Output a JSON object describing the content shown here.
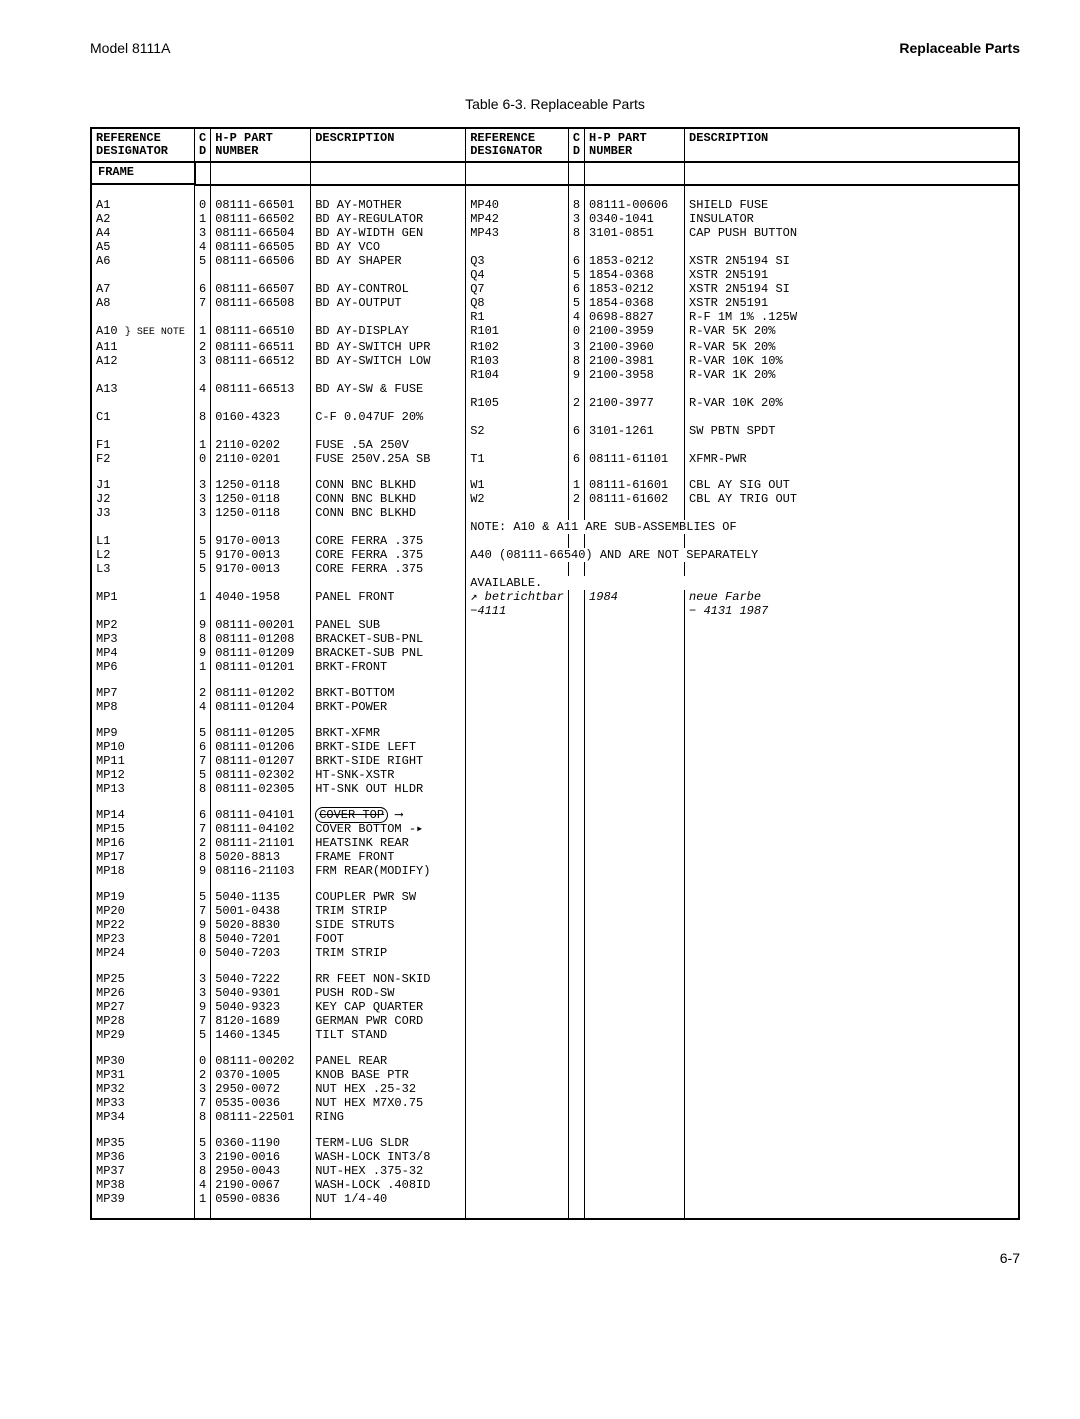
{
  "header": {
    "model": "Model 8111A",
    "section": "Replaceable Parts"
  },
  "table_caption": "Table 6-3. Replaceable Parts",
  "columns_left": {
    "ref": "REFERENCE\nDESIGNATOR",
    "cd": "C\nD",
    "num": "H-P  PART\nNUMBER",
    "desc": "DESCRIPTION"
  },
  "columns_right": {
    "ref": "REFERENCE\nDESIGNATOR",
    "cd": "C\nD",
    "num": "H-P  PART\nNUMBER",
    "desc": "DESCRIPTION"
  },
  "frame_label": "FRAME",
  "page_number": "6-7",
  "left_blocks": [
    [
      [
        "A1",
        "0",
        "08111-66501",
        "BD AY-MOTHER"
      ],
      [
        "A2",
        "1",
        "08111-66502",
        "BD AY-REGULATOR"
      ],
      [
        "A4",
        "3",
        "08111-66504",
        "BD AY-WIDTH GEN"
      ],
      [
        "A5",
        "4",
        "08111-66505",
        "BD AY VCO"
      ],
      [
        "A6",
        "5",
        "08111-66506",
        "BD AY SHAPER"
      ]
    ],
    [
      [
        "A7",
        "6",
        "08111-66507",
        "BD AY-CONTROL"
      ],
      [
        "A8",
        "7",
        "08111-66508",
        "BD AY-OUTPUT"
      ]
    ],
    [
      [
        "A13",
        "4",
        "08111-66513",
        "BD AY-SW & FUSE"
      ]
    ],
    [
      [
        "C1",
        "8",
        "0160-4323",
        "C-F 0.047UF 20%"
      ]
    ],
    [
      [
        "F1",
        "1",
        "2110-0202",
        "FUSE .5A 250V"
      ],
      [
        "F2",
        "0",
        "2110-0201",
        "FUSE 250V.25A SB"
      ]
    ],
    [
      [
        "J1",
        "3",
        "1250-0118",
        "CONN BNC BLKHD"
      ],
      [
        "J2",
        "3",
        "1250-0118",
        "CONN BNC BLKHD"
      ],
      [
        "J3",
        "3",
        "1250-0118",
        "CONN BNC BLKHD"
      ]
    ],
    [
      [
        "L1",
        "5",
        "9170-0013",
        "CORE FERRA .375"
      ],
      [
        "L2",
        "5",
        "9170-0013",
        "CORE FERRA .375"
      ],
      [
        "L3",
        "5",
        "9170-0013",
        "CORE FERRA .375"
      ]
    ],
    [
      [
        "MP1",
        "1",
        "4040-1958",
        "PANEL FRONT"
      ],
      [
        "MP2",
        "9",
        "08111-00201",
        "PANEL SUB"
      ],
      [
        "MP3",
        "8",
        "08111-01208",
        "BRACKET-SUB-PNL"
      ],
      [
        "MP4",
        "9",
        "08111-01209",
        "BRACKET-SUB PNL"
      ],
      [
        "MP6",
        "1",
        "08111-01201",
        "BRKT-FRONT"
      ]
    ],
    [
      [
        "MP7",
        "2",
        "08111-01202",
        "BRKT-BOTTOM"
      ],
      [
        "MP8",
        "4",
        "08111-01204",
        "BRKT-POWER"
      ]
    ],
    [
      [
        "MP9",
        "5",
        "08111-01205",
        "BRKT-XFMR"
      ],
      [
        "MP10",
        "6",
        "08111-01206",
        "BRKT-SIDE LEFT"
      ],
      [
        "MP11",
        "7",
        "08111-01207",
        "BRKT-SIDE RIGHT"
      ],
      [
        "MP12",
        "5",
        "08111-02302",
        "HT-SNK-XSTR"
      ],
      [
        "MP13",
        "8",
        "08111-02305",
        "HT-SNK OUT HLDR"
      ]
    ],
    [
      [
        "MP14",
        "6",
        "08111-04101",
        ""
      ],
      [
        "MP15",
        "7",
        "08111-04102",
        "COVER BOTTOM  -▸"
      ],
      [
        "MP16",
        "2",
        "08111-21101",
        "HEATSINK REAR"
      ],
      [
        "MP17",
        "8",
        "5020-8813",
        "FRAME FRONT"
      ],
      [
        "MP18",
        "9",
        "08116-21103",
        "FRM REAR(MODIFY)"
      ]
    ],
    [
      [
        "MP19",
        "5",
        "5040-1135",
        "COUPLER PWR SW"
      ],
      [
        "MP20",
        "7",
        "5001-0438",
        "TRIM STRIP"
      ],
      [
        "MP22",
        "9",
        "5020-8830",
        "SIDE STRUTS"
      ],
      [
        "MP23",
        "8",
        "5040-7201",
        "FOOT"
      ],
      [
        "MP24",
        "0",
        "5040-7203",
        "TRIM STRIP"
      ]
    ],
    [
      [
        "MP25",
        "3",
        "5040-7222",
        "RR FEET NON-SKID"
      ],
      [
        "MP26",
        "3",
        "5040-9301",
        "PUSH ROD-SW"
      ],
      [
        "MP27",
        "9",
        "5040-9323",
        "KEY CAP QUARTER"
      ],
      [
        "MP28",
        "7",
        "8120-1689",
        "GERMAN  PWR CORD"
      ],
      [
        "MP29",
        "5",
        "1460-1345",
        "TILT STAND"
      ]
    ],
    [
      [
        "MP30",
        "0",
        "08111-00202",
        "PANEL REAR"
      ],
      [
        "MP31",
        "2",
        "0370-1005",
        "KNOB BASE PTR"
      ],
      [
        "MP32",
        "3",
        "2950-0072",
        "NUT HEX .25-32"
      ],
      [
        "MP33",
        "7",
        "0535-0036",
        "NUT HEX M7X0.75"
      ],
      [
        "MP34",
        "8",
        "08111-22501",
        "RING"
      ]
    ],
    [
      [
        "MP35",
        "5",
        "0360-1190",
        "TERM-LUG SLDR"
      ],
      [
        "MP36",
        "3",
        "2190-0016",
        "WASH-LOCK INT3/8"
      ],
      [
        "MP37",
        "8",
        "2950-0043",
        "NUT-HEX .375-32"
      ],
      [
        "MP38",
        "4",
        "2190-0067",
        "WASH-LOCK .408ID"
      ],
      [
        "MP39",
        "1",
        "0590-0836",
        "NUT 1/4-40"
      ]
    ]
  ],
  "a_block": {
    "rows": [
      [
        "A10",
        "1",
        "08111-66510",
        "BD AY-DISPLAY"
      ],
      [
        "A11",
        "2",
        "08111-66511",
        "BD AY-SWITCH UPR"
      ],
      [
        "A12",
        "3",
        "08111-66512",
        "BD AY-SWITCH LOW"
      ]
    ],
    "see_note": "} SEE NOTE"
  },
  "right_blocks": [
    [
      [
        "MP40",
        "8",
        "08111-00606",
        "SHIELD FUSE"
      ],
      [
        "MP42",
        "3",
        "0340-1041",
        "INSULATOR"
      ],
      [
        "MP43",
        "8",
        "3101-0851",
        "CAP PUSH BUTTON"
      ]
    ],
    [
      [
        "Q3",
        "6",
        "1853-0212",
        "XSTR 2N5194 SI"
      ],
      [
        "Q4",
        "5",
        "1854-0368",
        "XSTR 2N5191"
      ],
      [
        "Q7",
        "6",
        "1853-0212",
        "XSTR 2N5194 SI"
      ],
      [
        "Q8",
        "5",
        "1854-0368",
        "XSTR 2N5191"
      ]
    ],
    [
      [
        "R1",
        "4",
        "0698-8827",
        "R-F 1M 1% .125W"
      ],
      [
        "R101",
        "0",
        "2100-3959",
        "R-VAR 5K 20%"
      ],
      [
        "R102",
        "3",
        "2100-3960",
        "R-VAR 5K 20%"
      ],
      [
        "R103",
        "8",
        "2100-3981",
        "R-VAR 10K 10%"
      ],
      [
        "R104",
        "9",
        "2100-3958",
        "R-VAR 1K 20%"
      ]
    ],
    [
      [
        "R105",
        "2",
        "2100-3977",
        "R-VAR 10K 20%"
      ]
    ],
    [
      [
        "S2",
        "6",
        "3101-1261",
        "SW PBTN SPDT"
      ]
    ],
    [
      [
        "T1",
        "6",
        "08111-61101",
        "XFMR-PWR"
      ]
    ],
    [
      [
        "W1",
        "1",
        "08111-61601",
        "CBL AY SIG OUT"
      ],
      [
        "W2",
        "2",
        "08111-61602",
        "CBL AY TRIG OUT"
      ]
    ]
  ],
  "note": {
    "line1": "NOTE:  A10 & A11 ARE SUB-ASSEMBLIES OF",
    "line2": "A40 (08111-66540) AND ARE NOT SEPARATELY",
    "line3": "AVAILABLE."
  },
  "mp14_cover_top": "COVER TOP",
  "hand": {
    "left": "betrichtbar\n   −4111",
    "mid": "1984",
    "right": "neue Farbe\n − 4131    1987"
  }
}
